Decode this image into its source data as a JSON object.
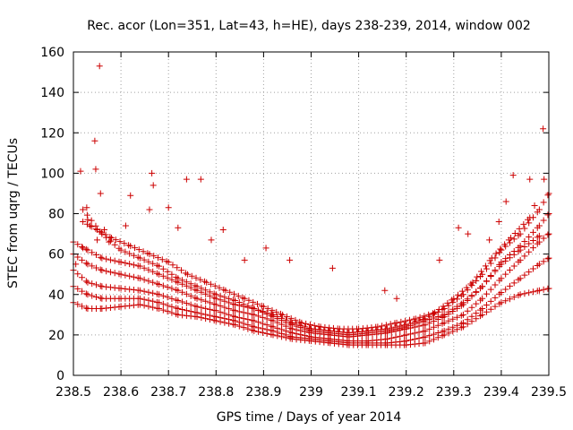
{
  "chart_data": {
    "type": "scatter",
    "title": "Rec. acor (Lon=351, Lat=43, h=HE), days 238-239, 2014, window 002",
    "xlabel": "GPS time / Days of year 2014",
    "ylabel": "STEC from uqrg / TECUs",
    "xlim": [
      238.5,
      239.5
    ],
    "ylim": [
      0,
      160
    ],
    "xticks": [
      "238.5",
      "238.6",
      "238.7",
      "238.8",
      "238.9",
      "239",
      "239.1",
      "239.2",
      "239.3",
      "239.4",
      "239.5"
    ],
    "yticks": [
      "0",
      "20",
      "40",
      "60",
      "80",
      "100",
      "120",
      "140",
      "160"
    ],
    "marker": "plus",
    "color": "#cc0000",
    "grid": true,
    "tracks": [
      [
        [
          238.5,
          36
        ],
        [
          238.53,
          33
        ],
        [
          238.56,
          33
        ],
        [
          238.6,
          34
        ],
        [
          238.64,
          35
        ],
        [
          238.68,
          33
        ],
        [
          238.72,
          30
        ],
        [
          238.76,
          29
        ],
        [
          238.8,
          27
        ],
        [
          238.84,
          25
        ],
        [
          238.88,
          22
        ],
        [
          238.92,
          20
        ],
        [
          238.96,
          18
        ],
        [
          239.0,
          17
        ],
        [
          239.04,
          16
        ],
        [
          239.08,
          15
        ],
        [
          239.12,
          15
        ],
        [
          239.16,
          15
        ],
        [
          239.2,
          15
        ],
        [
          239.24,
          16
        ],
        [
          239.28,
          20
        ],
        [
          239.32,
          24
        ],
        [
          239.36,
          30
        ],
        [
          239.4,
          36
        ],
        [
          239.44,
          40
        ],
        [
          239.48,
          42
        ],
        [
          239.5,
          43
        ]
      ],
      [
        [
          238.5,
          44
        ],
        [
          238.53,
          40
        ],
        [
          238.56,
          38
        ],
        [
          238.6,
          38
        ],
        [
          238.64,
          38
        ],
        [
          238.68,
          36
        ],
        [
          238.72,
          33
        ],
        [
          238.76,
          31
        ],
        [
          238.8,
          29
        ],
        [
          238.84,
          27
        ],
        [
          238.88,
          24
        ],
        [
          238.92,
          22
        ],
        [
          238.96,
          19
        ],
        [
          239.0,
          18
        ],
        [
          239.04,
          17
        ],
        [
          239.08,
          16
        ],
        [
          239.12,
          16
        ],
        [
          239.16,
          16
        ],
        [
          239.2,
          17
        ],
        [
          239.24,
          19
        ],
        [
          239.28,
          22
        ],
        [
          239.32,
          26
        ],
        [
          239.36,
          33
        ],
        [
          239.4,
          41
        ],
        [
          239.44,
          48
        ],
        [
          239.48,
          55
        ],
        [
          239.5,
          58
        ]
      ],
      [
        [
          238.5,
          52
        ],
        [
          238.53,
          46
        ],
        [
          238.56,
          44
        ],
        [
          238.6,
          43
        ],
        [
          238.64,
          42
        ],
        [
          238.68,
          40
        ],
        [
          238.72,
          37
        ],
        [
          238.76,
          34
        ],
        [
          238.8,
          32
        ],
        [
          238.84,
          29
        ],
        [
          238.88,
          27
        ],
        [
          238.92,
          24
        ],
        [
          238.96,
          21
        ],
        [
          239.0,
          19
        ],
        [
          239.04,
          18
        ],
        [
          239.08,
          17
        ],
        [
          239.12,
          17
        ],
        [
          239.16,
          18
        ],
        [
          239.2,
          20
        ],
        [
          239.24,
          22
        ],
        [
          239.28,
          26
        ],
        [
          239.32,
          30
        ],
        [
          239.36,
          38
        ],
        [
          239.4,
          48
        ],
        [
          239.44,
          57
        ],
        [
          239.48,
          66
        ],
        [
          239.5,
          70
        ]
      ],
      [
        [
          238.5,
          60
        ],
        [
          238.53,
          55
        ],
        [
          238.56,
          52
        ],
        [
          238.6,
          50
        ],
        [
          238.64,
          48
        ],
        [
          238.68,
          45
        ],
        [
          238.72,
          42
        ],
        [
          238.76,
          38
        ],
        [
          238.8,
          35
        ],
        [
          238.84,
          32
        ],
        [
          238.88,
          30
        ],
        [
          238.92,
          27
        ],
        [
          238.96,
          23
        ],
        [
          239.0,
          21
        ],
        [
          239.04,
          20
        ],
        [
          239.08,
          19
        ],
        [
          239.12,
          20
        ],
        [
          239.16,
          21
        ],
        [
          239.2,
          23
        ],
        [
          239.24,
          25
        ],
        [
          239.28,
          29
        ],
        [
          239.32,
          35
        ],
        [
          239.36,
          44
        ],
        [
          239.4,
          56
        ],
        [
          239.44,
          64
        ],
        [
          239.48,
          74
        ],
        [
          239.5,
          80
        ]
      ],
      [
        [
          238.5,
          66
        ],
        [
          238.53,
          62
        ],
        [
          238.56,
          58
        ],
        [
          238.6,
          56
        ],
        [
          238.64,
          54
        ],
        [
          238.68,
          50
        ],
        [
          238.72,
          46
        ],
        [
          238.76,
          42
        ],
        [
          238.8,
          38
        ],
        [
          238.84,
          35
        ],
        [
          238.88,
          33
        ],
        [
          238.92,
          30
        ],
        [
          238.96,
          26
        ],
        [
          239.0,
          23
        ],
        [
          239.04,
          22
        ],
        [
          239.08,
          21
        ],
        [
          239.12,
          22
        ],
        [
          239.16,
          23
        ],
        [
          239.2,
          25
        ],
        [
          239.24,
          28
        ],
        [
          239.28,
          33
        ],
        [
          239.32,
          40
        ],
        [
          239.36,
          50
        ],
        [
          239.4,
          62
        ],
        [
          239.44,
          70
        ],
        [
          239.48,
          82
        ],
        [
          239.5,
          90
        ]
      ],
      [
        [
          238.52,
          76
        ],
        [
          238.55,
          72
        ],
        [
          238.58,
          68
        ],
        [
          238.62,
          64
        ],
        [
          238.66,
          60
        ],
        [
          238.7,
          56
        ],
        [
          238.74,
          50
        ],
        [
          238.78,
          46
        ],
        [
          238.82,
          42
        ],
        [
          238.86,
          38
        ],
        [
          238.9,
          34
        ],
        [
          238.94,
          30
        ],
        [
          238.98,
          26
        ],
        [
          239.02,
          24
        ],
        [
          239.06,
          23
        ],
        [
          239.1,
          23
        ],
        [
          239.14,
          24
        ],
        [
          239.18,
          26
        ],
        [
          239.22,
          28
        ],
        [
          239.26,
          31
        ],
        [
          239.3,
          38
        ],
        [
          239.34,
          46
        ],
        [
          239.38,
          58
        ],
        [
          239.42,
          68
        ],
        [
          239.46,
          78
        ]
      ],
      [
        [
          238.52,
          82
        ],
        [
          238.56,
          70
        ],
        [
          238.6,
          62
        ],
        [
          238.64,
          58
        ],
        [
          238.68,
          54
        ],
        [
          238.72,
          48
        ],
        [
          238.76,
          44
        ],
        [
          238.8,
          40
        ],
        [
          238.84,
          37
        ],
        [
          238.88,
          33
        ],
        [
          238.92,
          29
        ],
        [
          238.96,
          25
        ],
        [
          239.0,
          22
        ],
        [
          239.04,
          21
        ],
        [
          239.08,
          20
        ],
        [
          239.12,
          21
        ],
        [
          239.16,
          22
        ],
        [
          239.2,
          24
        ],
        [
          239.24,
          27
        ],
        [
          239.28,
          30
        ],
        [
          239.32,
          36
        ],
        [
          239.36,
          44
        ],
        [
          239.4,
          55
        ],
        [
          239.44,
          62
        ],
        [
          239.48,
          69
        ]
      ]
    ],
    "outliers": [
      [
        238.505,
        55
      ],
      [
        238.515,
        101
      ],
      [
        238.52,
        63
      ],
      [
        238.528,
        83
      ],
      [
        238.53,
        77
      ],
      [
        238.535,
        74
      ],
      [
        238.545,
        116
      ],
      [
        238.547,
        102
      ],
      [
        238.55,
        67
      ],
      [
        238.555,
        153
      ],
      [
        238.557,
        90
      ],
      [
        238.565,
        72
      ],
      [
        238.575,
        66
      ],
      [
        238.62,
        89
      ],
      [
        238.61,
        74
      ],
      [
        238.66,
        82
      ],
      [
        238.665,
        100
      ],
      [
        238.668,
        94
      ],
      [
        238.7,
        83
      ],
      [
        238.72,
        73
      ],
      [
        238.738,
        97
      ],
      [
        238.768,
        97
      ],
      [
        238.79,
        67
      ],
      [
        238.815,
        72
      ],
      [
        238.86,
        57
      ],
      [
        238.905,
        63
      ],
      [
        238.955,
        57
      ],
      [
        239.045,
        53
      ],
      [
        239.155,
        42
      ],
      [
        239.18,
        38
      ],
      [
        239.27,
        57
      ],
      [
        239.31,
        73
      ],
      [
        239.33,
        70
      ],
      [
        239.375,
        67
      ],
      [
        239.395,
        76
      ],
      [
        239.41,
        86
      ],
      [
        239.425,
        99
      ],
      [
        239.46,
        97
      ],
      [
        239.47,
        84
      ],
      [
        239.488,
        122
      ],
      [
        239.49,
        97
      ]
    ]
  }
}
